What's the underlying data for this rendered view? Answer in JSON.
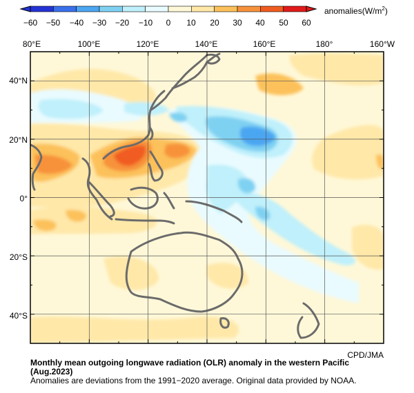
{
  "colorbar": {
    "ticks": [
      "−60",
      "−50",
      "−40",
      "−30",
      "−20",
      "−10",
      "0",
      "10",
      "20",
      "30",
      "40",
      "50",
      "60"
    ],
    "units_prefix": "anomalies(W/m",
    "units_sup": "2",
    "units_suffix": ")",
    "colors": [
      "#2433d6",
      "#3a70ea",
      "#4ca6f2",
      "#7fd1f2",
      "#bff0fb",
      "#e9fbff",
      "#fff8d8",
      "#ffe8a8",
      "#fcc15a",
      "#f7923a",
      "#f05c20",
      "#e11a1a"
    ]
  },
  "map": {
    "lon_labels": [
      "80°E",
      "100°E",
      "120°E",
      "140°E",
      "160°E",
      "180°",
      "160°W"
    ],
    "lat_labels": [
      "40°N",
      "20°N",
      "0°",
      "20°S",
      "40°S"
    ]
  },
  "credit": "CPD/JMA",
  "caption": {
    "title_line1": "Monthly mean outgoing longwave radiation (OLR) anomaly in the western Pacific",
    "title_line2": "(Aug.2023)",
    "note": "Anomalies are deviations from the 1991−2020 average. Original data provided by NOAA."
  }
}
